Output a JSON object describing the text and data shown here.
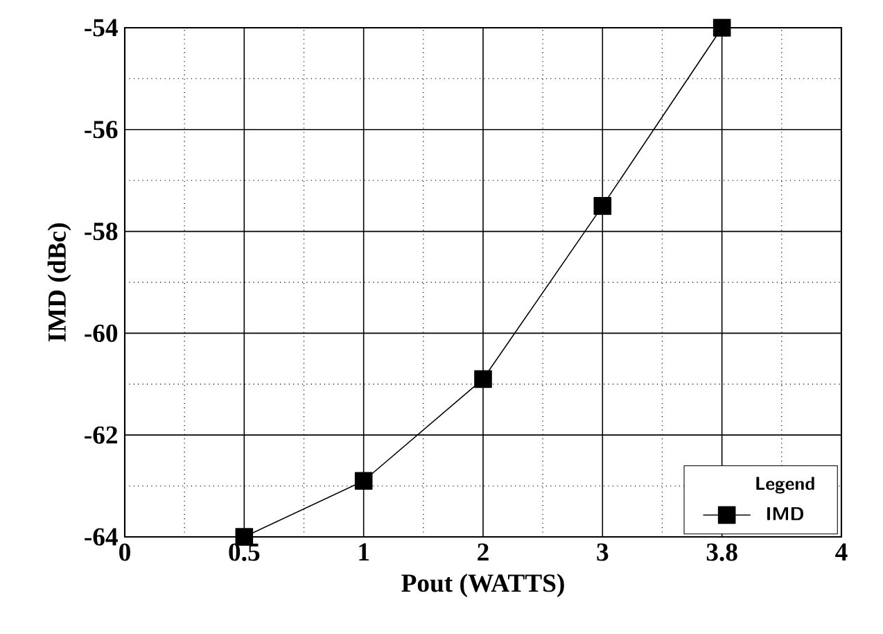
{
  "chart_data": {
    "type": "line",
    "xlabel": "Pout (WATTS)",
    "ylabel": "IMD (dBc)",
    "legend_title": "Legend",
    "categories": [
      "0",
      "0.5",
      "1",
      "2",
      "3",
      "3.8",
      "4"
    ],
    "series": [
      {
        "name": "IMD",
        "color": "#000000",
        "values": [
          null,
          -64,
          -62.9,
          -60.9,
          -57.5,
          -54,
          null
        ]
      }
    ],
    "ylim": [
      -64,
      -54
    ],
    "yticks": [
      -64,
      -62,
      -60,
      -58,
      -56,
      -54
    ],
    "grid": true,
    "legend": "bottom right",
    "marker": "square",
    "line_style": "solid"
  }
}
